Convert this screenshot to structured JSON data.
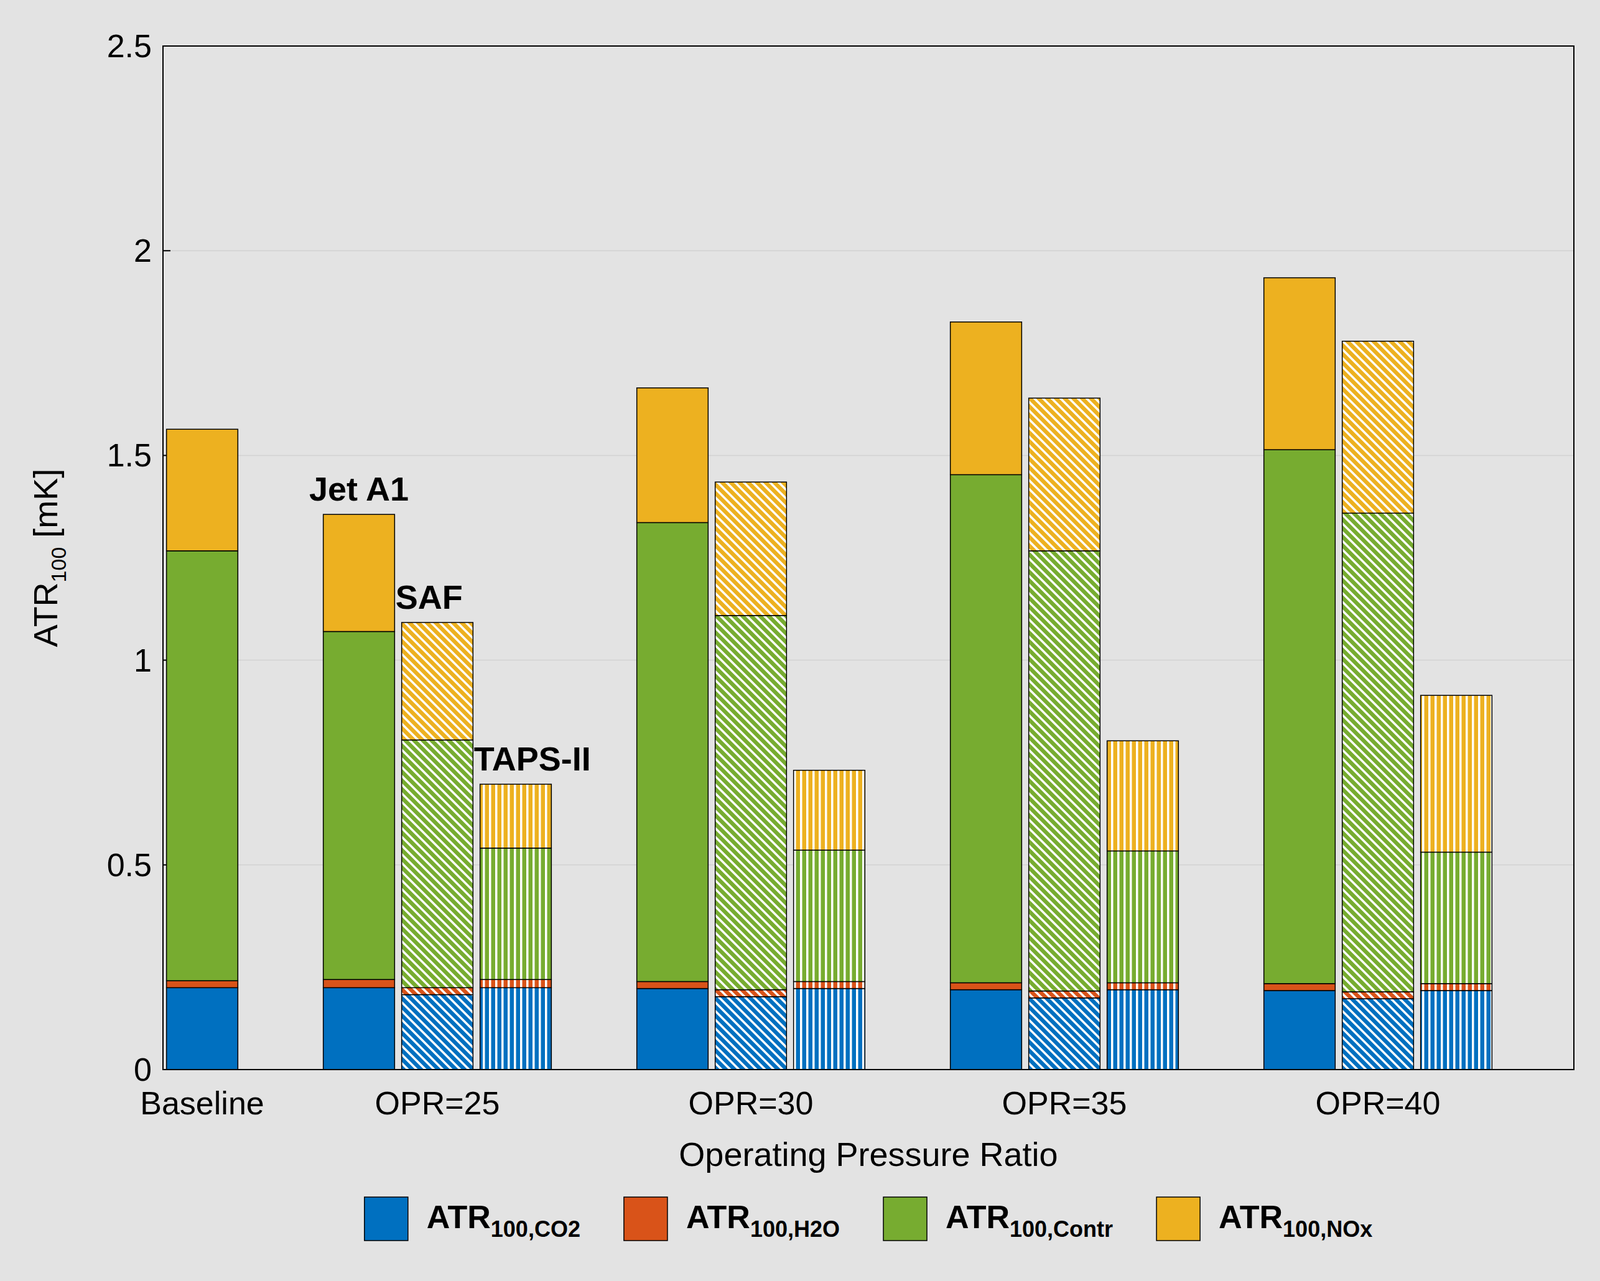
{
  "chart_data": {
    "type": "bar",
    "stacked": true,
    "grid": true,
    "legend": "bottom",
    "x_label": "Operating Pressure Ratio",
    "y_label": "ATR100 [mK]",
    "categories": [
      "Baseline",
      "OPR=25",
      "OPR=30",
      "OPR=35",
      "OPR=40"
    ],
    "bar_labels": [
      "Jet A1",
      "SAF",
      "TAPS-II"
    ],
    "ylim": [
      0,
      2.5
    ],
    "yticks": [
      0,
      0.5,
      1,
      1.5,
      2,
      2.5
    ],
    "series": [
      {
        "name": "ATR100,CO2",
        "color": "#0070c0",
        "values": [
          [
            0.2
          ],
          [
            0.2,
            0.183,
            0.2
          ],
          [
            0.198,
            0.178,
            0.198
          ],
          [
            0.195,
            0.175,
            0.195
          ],
          [
            0.193,
            0.173,
            0.193
          ]
        ]
      },
      {
        "name": "ATR100,H2O",
        "color": "#d95319",
        "values": [
          [
            0.017
          ],
          [
            0.02,
            0.017,
            0.02
          ],
          [
            0.017,
            0.017,
            0.017
          ],
          [
            0.017,
            0.017,
            0.017
          ],
          [
            0.017,
            0.017,
            0.017
          ]
        ]
      },
      {
        "name": "ATR100,Contr",
        "color": "#77ac30",
        "values": [
          [
            1.05
          ],
          [
            0.85,
            0.605,
            0.321
          ],
          [
            1.121,
            0.914,
            0.321
          ],
          [
            1.241,
            1.075,
            0.322
          ],
          [
            1.304,
            1.169,
            0.321
          ]
        ]
      },
      {
        "name": "ATR100,NOx",
        "color": "#edb120",
        "values": [
          [
            0.297
          ],
          [
            0.286,
            0.287,
            0.156
          ],
          [
            0.329,
            0.326,
            0.195
          ],
          [
            0.373,
            0.373,
            0.269
          ],
          [
            0.42,
            0.42,
            0.383
          ]
        ]
      }
    ]
  }
}
